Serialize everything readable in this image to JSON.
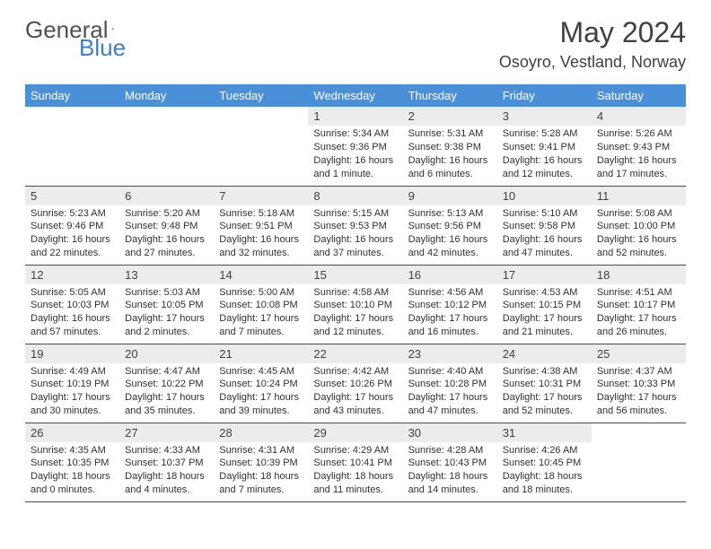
{
  "brand": {
    "part1": "General",
    "part2": "Blue"
  },
  "title": "May 2024",
  "location": "Osoyro, Vestland, Norway",
  "colors": {
    "header_bg": "#4a90d9",
    "header_text": "#ffffff",
    "daynum_bg": "#ececec",
    "border": "#2a5080",
    "text": "#303030",
    "title_text": "#404040",
    "logo_gray": "#505050",
    "logo_blue": "#3b7fc4"
  },
  "weekdays": [
    "Sunday",
    "Monday",
    "Tuesday",
    "Wednesday",
    "Thursday",
    "Friday",
    "Saturday"
  ],
  "weeks": [
    [
      {
        "day": "",
        "sunrise": "",
        "sunset": "",
        "daylight": ""
      },
      {
        "day": "",
        "sunrise": "",
        "sunset": "",
        "daylight": ""
      },
      {
        "day": "",
        "sunrise": "",
        "sunset": "",
        "daylight": ""
      },
      {
        "day": "1",
        "sunrise": "Sunrise: 5:34 AM",
        "sunset": "Sunset: 9:36 PM",
        "daylight": "Daylight: 16 hours and 1 minute."
      },
      {
        "day": "2",
        "sunrise": "Sunrise: 5:31 AM",
        "sunset": "Sunset: 9:38 PM",
        "daylight": "Daylight: 16 hours and 6 minutes."
      },
      {
        "day": "3",
        "sunrise": "Sunrise: 5:28 AM",
        "sunset": "Sunset: 9:41 PM",
        "daylight": "Daylight: 16 hours and 12 minutes."
      },
      {
        "day": "4",
        "sunrise": "Sunrise: 5:26 AM",
        "sunset": "Sunset: 9:43 PM",
        "daylight": "Daylight: 16 hours and 17 minutes."
      }
    ],
    [
      {
        "day": "5",
        "sunrise": "Sunrise: 5:23 AM",
        "sunset": "Sunset: 9:46 PM",
        "daylight": "Daylight: 16 hours and 22 minutes."
      },
      {
        "day": "6",
        "sunrise": "Sunrise: 5:20 AM",
        "sunset": "Sunset: 9:48 PM",
        "daylight": "Daylight: 16 hours and 27 minutes."
      },
      {
        "day": "7",
        "sunrise": "Sunrise: 5:18 AM",
        "sunset": "Sunset: 9:51 PM",
        "daylight": "Daylight: 16 hours and 32 minutes."
      },
      {
        "day": "8",
        "sunrise": "Sunrise: 5:15 AM",
        "sunset": "Sunset: 9:53 PM",
        "daylight": "Daylight: 16 hours and 37 minutes."
      },
      {
        "day": "9",
        "sunrise": "Sunrise: 5:13 AM",
        "sunset": "Sunset: 9:56 PM",
        "daylight": "Daylight: 16 hours and 42 minutes."
      },
      {
        "day": "10",
        "sunrise": "Sunrise: 5:10 AM",
        "sunset": "Sunset: 9:58 PM",
        "daylight": "Daylight: 16 hours and 47 minutes."
      },
      {
        "day": "11",
        "sunrise": "Sunrise: 5:08 AM",
        "sunset": "Sunset: 10:00 PM",
        "daylight": "Daylight: 16 hours and 52 minutes."
      }
    ],
    [
      {
        "day": "12",
        "sunrise": "Sunrise: 5:05 AM",
        "sunset": "Sunset: 10:03 PM",
        "daylight": "Daylight: 16 hours and 57 minutes."
      },
      {
        "day": "13",
        "sunrise": "Sunrise: 5:03 AM",
        "sunset": "Sunset: 10:05 PM",
        "daylight": "Daylight: 17 hours and 2 minutes."
      },
      {
        "day": "14",
        "sunrise": "Sunrise: 5:00 AM",
        "sunset": "Sunset: 10:08 PM",
        "daylight": "Daylight: 17 hours and 7 minutes."
      },
      {
        "day": "15",
        "sunrise": "Sunrise: 4:58 AM",
        "sunset": "Sunset: 10:10 PM",
        "daylight": "Daylight: 17 hours and 12 minutes."
      },
      {
        "day": "16",
        "sunrise": "Sunrise: 4:56 AM",
        "sunset": "Sunset: 10:12 PM",
        "daylight": "Daylight: 17 hours and 16 minutes."
      },
      {
        "day": "17",
        "sunrise": "Sunrise: 4:53 AM",
        "sunset": "Sunset: 10:15 PM",
        "daylight": "Daylight: 17 hours and 21 minutes."
      },
      {
        "day": "18",
        "sunrise": "Sunrise: 4:51 AM",
        "sunset": "Sunset: 10:17 PM",
        "daylight": "Daylight: 17 hours and 26 minutes."
      }
    ],
    [
      {
        "day": "19",
        "sunrise": "Sunrise: 4:49 AM",
        "sunset": "Sunset: 10:19 PM",
        "daylight": "Daylight: 17 hours and 30 minutes."
      },
      {
        "day": "20",
        "sunrise": "Sunrise: 4:47 AM",
        "sunset": "Sunset: 10:22 PM",
        "daylight": "Daylight: 17 hours and 35 minutes."
      },
      {
        "day": "21",
        "sunrise": "Sunrise: 4:45 AM",
        "sunset": "Sunset: 10:24 PM",
        "daylight": "Daylight: 17 hours and 39 minutes."
      },
      {
        "day": "22",
        "sunrise": "Sunrise: 4:42 AM",
        "sunset": "Sunset: 10:26 PM",
        "daylight": "Daylight: 17 hours and 43 minutes."
      },
      {
        "day": "23",
        "sunrise": "Sunrise: 4:40 AM",
        "sunset": "Sunset: 10:28 PM",
        "daylight": "Daylight: 17 hours and 47 minutes."
      },
      {
        "day": "24",
        "sunrise": "Sunrise: 4:38 AM",
        "sunset": "Sunset: 10:31 PM",
        "daylight": "Daylight: 17 hours and 52 minutes."
      },
      {
        "day": "25",
        "sunrise": "Sunrise: 4:37 AM",
        "sunset": "Sunset: 10:33 PM",
        "daylight": "Daylight: 17 hours and 56 minutes."
      }
    ],
    [
      {
        "day": "26",
        "sunrise": "Sunrise: 4:35 AM",
        "sunset": "Sunset: 10:35 PM",
        "daylight": "Daylight: 18 hours and 0 minutes."
      },
      {
        "day": "27",
        "sunrise": "Sunrise: 4:33 AM",
        "sunset": "Sunset: 10:37 PM",
        "daylight": "Daylight: 18 hours and 4 minutes."
      },
      {
        "day": "28",
        "sunrise": "Sunrise: 4:31 AM",
        "sunset": "Sunset: 10:39 PM",
        "daylight": "Daylight: 18 hours and 7 minutes."
      },
      {
        "day": "29",
        "sunrise": "Sunrise: 4:29 AM",
        "sunset": "Sunset: 10:41 PM",
        "daylight": "Daylight: 18 hours and 11 minutes."
      },
      {
        "day": "30",
        "sunrise": "Sunrise: 4:28 AM",
        "sunset": "Sunset: 10:43 PM",
        "daylight": "Daylight: 18 hours and 14 minutes."
      },
      {
        "day": "31",
        "sunrise": "Sunrise: 4:26 AM",
        "sunset": "Sunset: 10:45 PM",
        "daylight": "Daylight: 18 hours and 18 minutes."
      },
      {
        "day": "",
        "sunrise": "",
        "sunset": "",
        "daylight": ""
      }
    ]
  ]
}
